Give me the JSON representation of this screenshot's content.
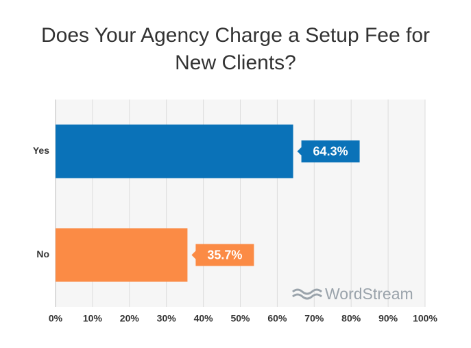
{
  "chart_data": {
    "type": "bar",
    "orientation": "horizontal",
    "title": "Does Your Agency Charge a Setup Fee for New Clients?",
    "categories": [
      "Yes",
      "No"
    ],
    "values": [
      64.3,
      35.7
    ],
    "value_labels": [
      "64.3%",
      "35.7%"
    ],
    "colors": [
      "#0a72b8",
      "#fb8b45"
    ],
    "xlim": [
      0,
      100
    ],
    "xticks": [
      {
        "value": 0,
        "label": "0%"
      },
      {
        "value": 10,
        "label": "10%"
      },
      {
        "value": 20,
        "label": "20%"
      },
      {
        "value": 30,
        "label": "30%"
      },
      {
        "value": 40,
        "label": "40%"
      },
      {
        "value": 50,
        "label": "50%"
      },
      {
        "value": 60,
        "label": "60%"
      },
      {
        "value": 70,
        "label": "70%"
      },
      {
        "value": 80,
        "label": "80%"
      },
      {
        "value": 90,
        "label": "90%"
      },
      {
        "value": 100,
        "label": "100%"
      }
    ],
    "grid": true,
    "watermark": "WordStream"
  }
}
